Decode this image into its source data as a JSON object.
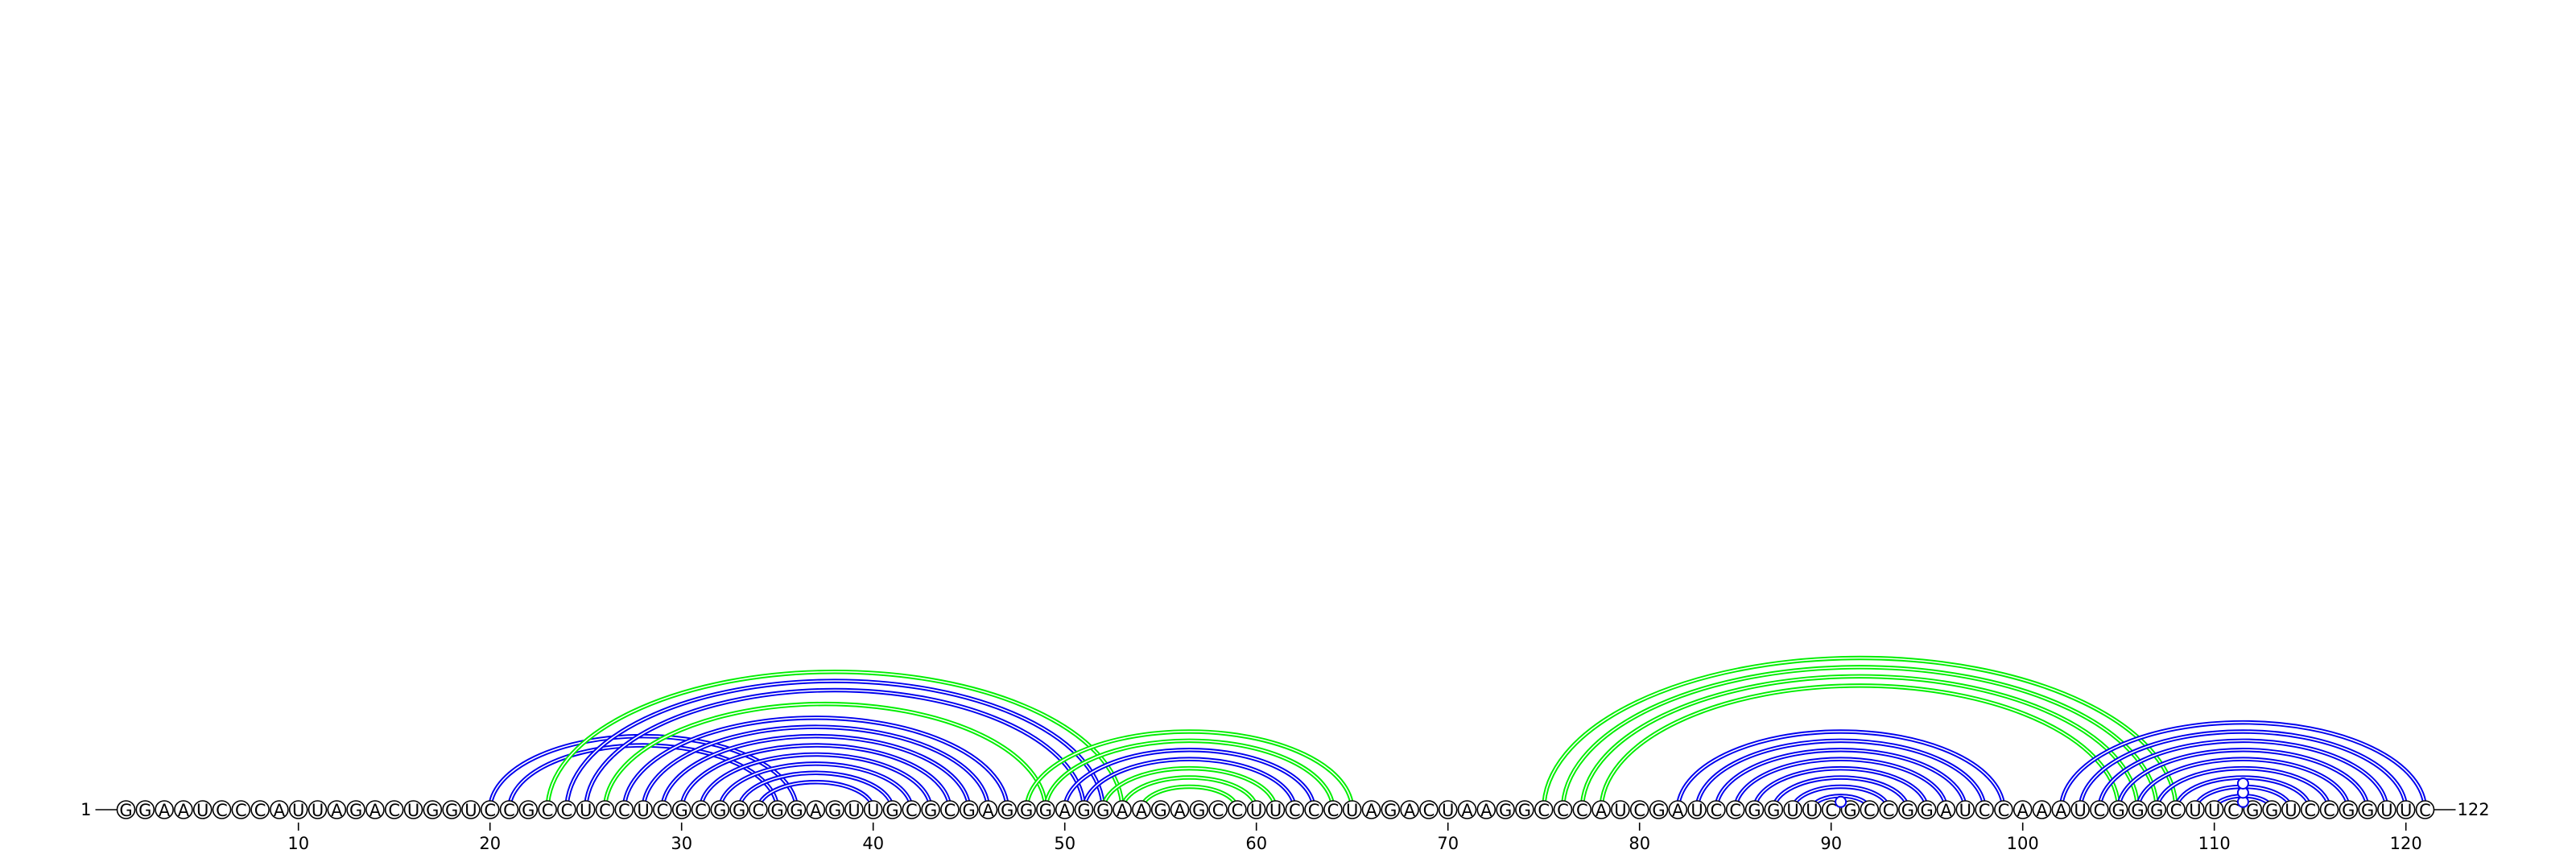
{
  "sequence": "GGAAUCCCAUUAGACUGGUCCGCCUCCUCGCGGCGGAGUUGCGCGAGGGAGGAAGAGCCUUCCCUAGACUAAGGCCCAUCGAUCCGGUUCGCCGGAUCCAAAUCGGGCUUCGGUCCGGUUC",
  "start_label": "1",
  "end_label": "122",
  "tick_positions": [
    10,
    20,
    30,
    40,
    50,
    60,
    70,
    80,
    90,
    100,
    110,
    120
  ],
  "tick_labels": [
    "10",
    "20",
    "30",
    "40",
    "50",
    "60",
    "70",
    "80",
    "90",
    "100",
    "110",
    "120"
  ],
  "colors": {
    "blue": "#0000ee",
    "green": "#00ee00",
    "black": "#000000"
  },
  "arcs": [
    {
      "color": "blue",
      "pairs": [
        [
          20,
          36
        ],
        [
          21,
          35
        ]
      ]
    },
    {
      "color": "blue",
      "pairs": [
        [
          24,
          52
        ],
        [
          25,
          51
        ]
      ]
    },
    {
      "color": "blue",
      "pairs": [
        [
          27,
          47
        ],
        [
          28,
          46
        ],
        [
          29,
          45
        ],
        [
          30,
          44
        ],
        [
          31,
          43
        ],
        [
          32,
          42
        ],
        [
          33,
          41
        ],
        [
          34,
          40
        ]
      ]
    },
    {
      "color": "green",
      "pairs": [
        [
          23,
          53
        ],
        [
          26,
          49
        ]
      ]
    },
    {
      "color": "green",
      "pairs": [
        [
          48,
          65
        ],
        [
          49,
          64
        ]
      ]
    },
    {
      "color": "blue",
      "pairs": [
        [
          50,
          63
        ],
        [
          51,
          62
        ]
      ]
    },
    {
      "color": "green",
      "pairs": [
        [
          52,
          61
        ],
        [
          53,
          60
        ],
        [
          54,
          59
        ]
      ]
    },
    {
      "color": "green",
      "pairs": [
        [
          75,
          108
        ],
        [
          76,
          107
        ],
        [
          77,
          106
        ],
        [
          78,
          105
        ]
      ]
    },
    {
      "color": "blue",
      "pairs": [
        [
          82,
          99
        ],
        [
          83,
          98
        ],
        [
          84,
          97
        ],
        [
          85,
          96
        ],
        [
          86,
          95
        ],
        [
          87,
          94
        ],
        [
          88,
          93
        ],
        [
          89,
          92
        ]
      ]
    },
    {
      "color": "blue",
      "pairs": [
        [
          102,
          121
        ],
        [
          103,
          120
        ],
        [
          104,
          119
        ],
        [
          105,
          118
        ],
        [
          106,
          117
        ],
        [
          107,
          116
        ],
        [
          108,
          115
        ],
        [
          109,
          114
        ],
        [
          110,
          113
        ]
      ]
    }
  ],
  "markers": [
    {
      "color": "blue",
      "position": 90.5,
      "height": 1
    },
    {
      "color": "blue",
      "position": 111.5,
      "height": 1
    },
    {
      "color": "blue",
      "position": 111.5,
      "height": 3
    },
    {
      "color": "blue",
      "position": 111.5,
      "height": 5
    }
  ]
}
